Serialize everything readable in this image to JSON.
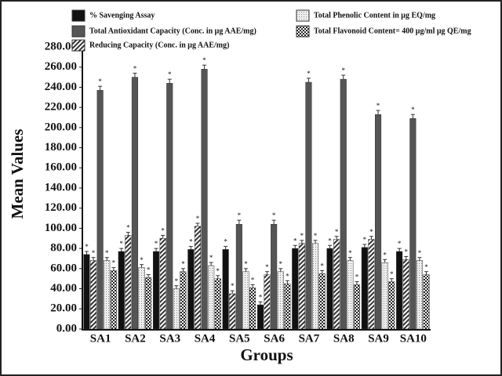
{
  "chart_data": {
    "type": "bar",
    "x_label": "Groups",
    "y_label": "Mean Values",
    "categories": [
      "SA1",
      "SA2",
      "SA3",
      "SA4",
      "SA5",
      "SA6",
      "SA7",
      "SA8",
      "SA9",
      "SA10"
    ],
    "significance_marker": "*",
    "series": [
      {
        "name": "% Savenging Assay",
        "color": "#111111",
        "values": [
          74,
          77,
          77,
          79,
          79,
          24,
          80,
          80,
          81,
          77
        ],
        "errors": [
          3,
          3,
          3,
          3,
          3,
          3,
          3,
          3,
          3,
          3
        ]
      },
      {
        "name": "Reducing Capacity (Conc. in μg AAE/mg)",
        "color": "#6a6a6a",
        "fill_pattern": "hatch",
        "values": [
          68,
          93,
          90,
          102,
          35,
          54,
          85,
          89,
          89,
          69
        ],
        "errors": [
          3,
          3,
          3,
          3,
          3,
          3,
          3,
          3,
          3,
          3
        ]
      },
      {
        "name": "Total Antioxidant Capacity (Conc. in μg AAE/mg)",
        "color": "#555555",
        "values": [
          237,
          250,
          244,
          258,
          104,
          104,
          245,
          248,
          213,
          209
        ],
        "errors": [
          4,
          4,
          4,
          4,
          4,
          4,
          4,
          4,
          4,
          4
        ]
      },
      {
        "name": "Total Phenolic Content in μg EQ/mg",
        "color": "#dddddd",
        "fill_pattern": "dots",
        "values": [
          68,
          61,
          40,
          63,
          57,
          57,
          85,
          68,
          66,
          68
        ],
        "errors": [
          3,
          3,
          3,
          3,
          3,
          3,
          3,
          3,
          3,
          3
        ]
      },
      {
        "name": "Total Flavonoid Content= 400 μg/ml μg QE/mg",
        "color": "#444444",
        "fill_pattern": "checker",
        "values": [
          58,
          51,
          57,
          50,
          41,
          45,
          55,
          44,
          47,
          54
        ],
        "errors": [
          3,
          3,
          3,
          3,
          3,
          3,
          3,
          3,
          3,
          3
        ]
      }
    ],
    "ylim": [
      0,
      280
    ],
    "yticks": [
      {
        "value": 0,
        "label": "0.00"
      },
      {
        "value": 20,
        "label": "20.00"
      },
      {
        "value": 40,
        "label": "40.00"
      },
      {
        "value": 60,
        "label": "60.00"
      },
      {
        "value": 80,
        "label": "80.00"
      },
      {
        "value": 100,
        "label": "100.00"
      },
      {
        "value": 120,
        "label": "120.00"
      },
      {
        "value": 140,
        "label": "140.00"
      },
      {
        "value": 160,
        "label": "160.00"
      },
      {
        "value": 180,
        "label": "180.00"
      },
      {
        "value": 200,
        "label": "200.00"
      },
      {
        "value": 220,
        "label": "220.00"
      },
      {
        "value": 240,
        "label": "240.00"
      },
      {
        "value": 260,
        "label": "260.00"
      },
      {
        "value": 280,
        "label": "280.00"
      }
    ],
    "grid": false
  }
}
